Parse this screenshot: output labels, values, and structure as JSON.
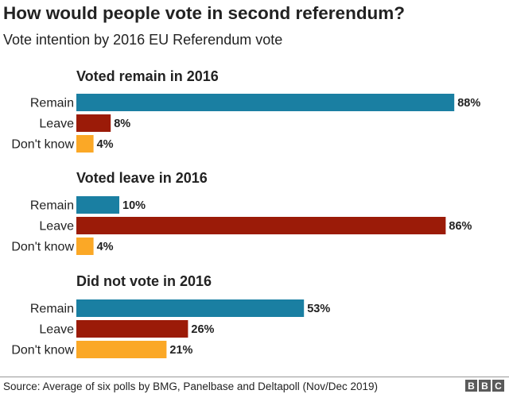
{
  "title": "How would people vote in second referendum?",
  "subtitle": "Vote intention by 2016 EU Referendum vote",
  "colors": {
    "Remain": "#1a7fa2",
    "Leave": "#9b1b08",
    "Don't know": "#fba826"
  },
  "chart_data": {
    "type": "bar",
    "orientation": "horizontal",
    "xlim": [
      0,
      100
    ],
    "panels": [
      {
        "title": "Voted remain in 2016",
        "categories": [
          "Remain",
          "Leave",
          "Don't know"
        ],
        "values": [
          88,
          8,
          4
        ],
        "labels": [
          "88%",
          "8%",
          "4%"
        ]
      },
      {
        "title": "Voted leave in 2016",
        "categories": [
          "Remain",
          "Leave",
          "Don't know"
        ],
        "values": [
          10,
          86,
          4
        ],
        "labels": [
          "10%",
          "86%",
          "4%"
        ]
      },
      {
        "title": "Did not vote in 2016",
        "categories": [
          "Remain",
          "Leave",
          "Don't know"
        ],
        "values": [
          53,
          26,
          21
        ],
        "labels": [
          "53%",
          "26%",
          "21%"
        ]
      }
    ]
  },
  "footer": {
    "source": "Source: Average of six polls by BMG, Panelbase and Deltapoll (Nov/Dec 2019)",
    "logo": [
      "B",
      "B",
      "C"
    ]
  }
}
